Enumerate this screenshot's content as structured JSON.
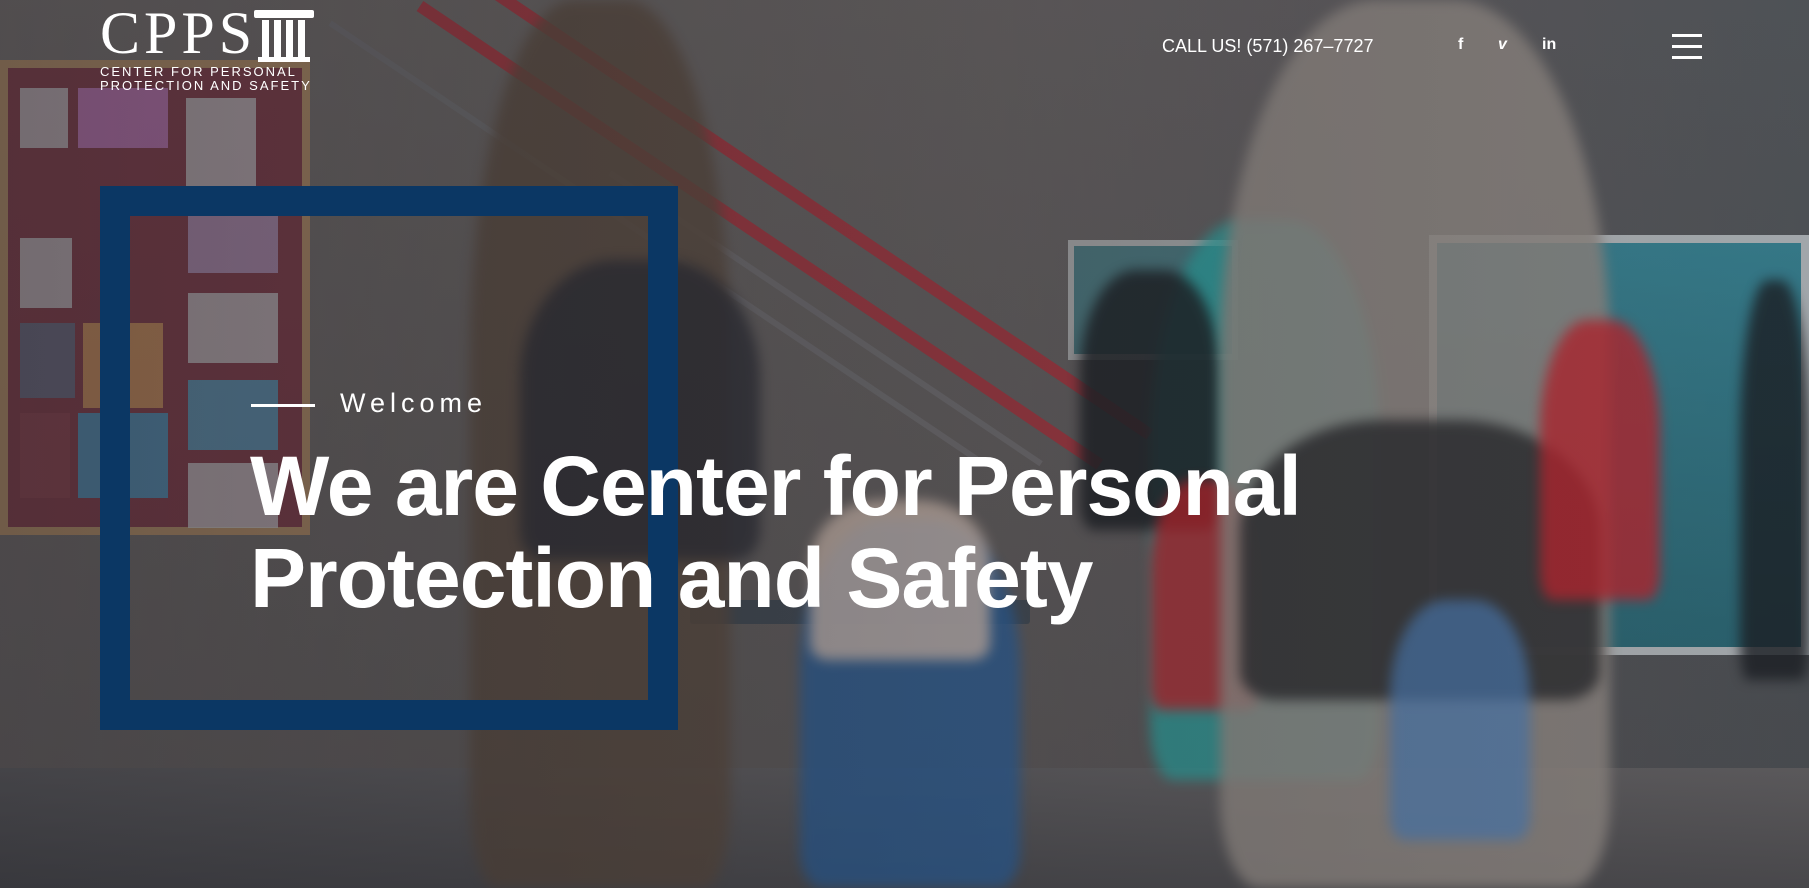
{
  "header": {
    "logo": {
      "mark": "CPPS",
      "line1": "CENTER FOR PERSONAL",
      "line2": "PROTECTION AND SAFETY"
    },
    "call_label": "CALL US! (571) 267–7727",
    "social": {
      "facebook": "f",
      "vimeo": "v",
      "linkedin": "in"
    },
    "menu_icon": "hamburger-menu-icon"
  },
  "hero": {
    "kicker": "Welcome",
    "headline_line1": "We are Center for Personal",
    "headline_line2": "Protection and Safety"
  },
  "colors": {
    "frame": "#0b3764",
    "text": "#ffffff"
  }
}
